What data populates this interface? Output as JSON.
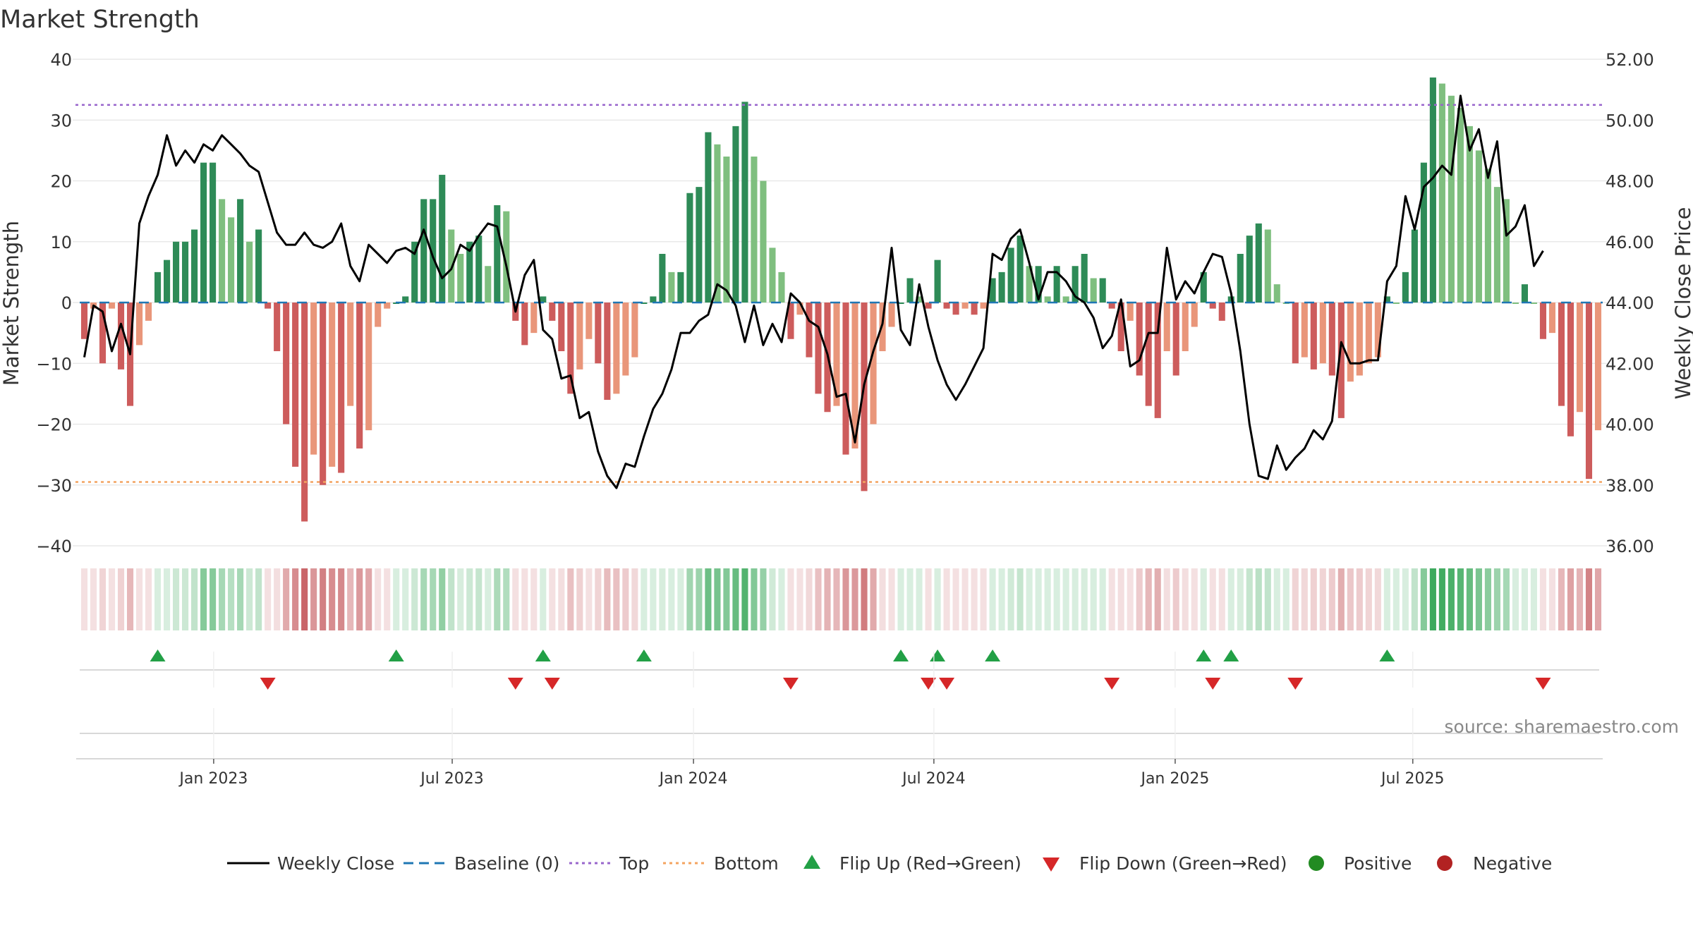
{
  "chart_data": {
    "type": "bar",
    "title": "Market Strength",
    "ylabel_left": "Market Strength",
    "ylabel_right": "Weekly Close Price",
    "ylim_left": [
      -40,
      40
    ],
    "ylim_right": [
      36,
      52
    ],
    "yticks_left": [
      "40",
      "30",
      "20",
      "10",
      "0",
      "−10",
      "−20",
      "−30",
      "−40"
    ],
    "yticks_left_values": [
      40,
      30,
      20,
      10,
      0,
      -10,
      -20,
      -30,
      -40
    ],
    "yticks_right": [
      "52.00",
      "50.00",
      "48.00",
      "46.00",
      "44.00",
      "42.00",
      "40.00",
      "38.00",
      "36.00"
    ],
    "yticks_right_values": [
      52,
      50,
      48,
      46,
      44,
      42,
      40,
      38,
      36
    ],
    "top_line": 32.5,
    "bottom_line": -29.5,
    "x_dates": [
      "Jan 2023",
      "Jul 2023",
      "Jan 2024",
      "Jul 2024",
      "Jan 2025",
      "Jul 2025"
    ],
    "x_date_weeks": [
      14.6,
      40.6,
      66.9,
      93.1,
      119.4,
      145.3
    ],
    "strength": [
      -6,
      -1,
      -10,
      -1,
      -11,
      -17,
      -7,
      -3,
      5,
      7,
      10,
      10,
      12,
      23,
      23,
      17,
      14,
      17,
      10,
      12,
      -1,
      -8,
      -20,
      -27,
      -36,
      -25,
      -30,
      -27,
      -28,
      -17,
      -24,
      -21,
      -4,
      -1,
      0,
      1,
      10,
      17,
      17,
      21,
      12,
      8,
      10,
      11,
      6,
      16,
      15,
      -3,
      -7,
      -5,
      1,
      -3,
      -8,
      -15,
      -11,
      -6,
      -10,
      -16,
      -15,
      -12,
      -9,
      0,
      1,
      8,
      5,
      5,
      18,
      19,
      28,
      26,
      24,
      29,
      33,
      24,
      20,
      9,
      5,
      -6,
      -2,
      -9,
      -15,
      -18,
      -17,
      -25,
      -24,
      -31,
      -20,
      -8,
      -4,
      0,
      4,
      1,
      -1,
      7,
      -1,
      -2,
      -1,
      -2,
      -1,
      4,
      5,
      9,
      11,
      6,
      6,
      1,
      6,
      1,
      6,
      8,
      4,
      4,
      -1,
      -8,
      -3,
      -12,
      -17,
      -19,
      -8,
      -12,
      -8,
      -4,
      5,
      -1,
      -3,
      1,
      8,
      11,
      13,
      12,
      3,
      0,
      -10,
      -9,
      -11,
      -10,
      -12,
      -19,
      -13,
      -12,
      -10,
      -9,
      1,
      0,
      5,
      12,
      23,
      37,
      36,
      34,
      32,
      29,
      25,
      22,
      19,
      17,
      0,
      3,
      0,
      -6,
      -5,
      -17,
      -22,
      -18,
      -29,
      -21
    ],
    "weekly_close": [
      42.2,
      43.9,
      43.7,
      42.4,
      43.3,
      42.3,
      46.6,
      47.5,
      48.2,
      49.5,
      48.5,
      49.0,
      48.6,
      49.2,
      49.0,
      49.5,
      49.2,
      48.9,
      48.5,
      48.3,
      47.3,
      46.3,
      45.9,
      45.9,
      46.3,
      45.9,
      45.8,
      46.0,
      46.6,
      45.2,
      44.7,
      45.9,
      45.6,
      45.3,
      45.7,
      45.8,
      45.6,
      46.4,
      45.5,
      44.8,
      45.1,
      45.9,
      45.7,
      46.2,
      46.6,
      46.5,
      45.2,
      43.7,
      44.9,
      45.4,
      43.1,
      42.8,
      41.5,
      41.6,
      40.2,
      40.4,
      39.1,
      38.3,
      37.9,
      38.7,
      38.6,
      39.6,
      40.5,
      41.0,
      41.8,
      43.0,
      43.0,
      43.4,
      43.6,
      44.6,
      44.4,
      43.9,
      42.7,
      43.9,
      42.6,
      43.3,
      42.7,
      44.3,
      44.0,
      43.4,
      43.2,
      42.3,
      40.9,
      41.0,
      39.4,
      41.3,
      42.4,
      43.3,
      45.8,
      43.1,
      42.6,
      44.6,
      43.2,
      42.1,
      41.3,
      40.8,
      41.3,
      41.9,
      42.5,
      45.6,
      45.4,
      46.1,
      46.4,
      45.3,
      44.1,
      45.0,
      45.0,
      44.7,
      44.2,
      44.0,
      43.5,
      42.5,
      42.9,
      44.1,
      41.9,
      42.1,
      43.0,
      43.0,
      45.8,
      44.1,
      44.7,
      44.3,
      45.0,
      45.6,
      45.5,
      44.3,
      42.4,
      40.0,
      38.3,
      38.2,
      39.3,
      38.5,
      38.9,
      39.2,
      39.8,
      39.5,
      40.1,
      42.7,
      42.0,
      42.0,
      42.1,
      42.1,
      44.7,
      45.2,
      47.5,
      46.4,
      47.8,
      48.1,
      48.5,
      48.2,
      50.8,
      49.0,
      49.7,
      48.1,
      49.3,
      46.2,
      46.5,
      47.2,
      45.2,
      45.7
    ]
  },
  "legend": {
    "weekly_close": "Weekly Close",
    "baseline": "Baseline (0)",
    "top": "Top",
    "bottom": "Bottom",
    "flip_up": "Flip Up (Red→Green)",
    "flip_down": "Flip Down (Green→Red)",
    "positive": "Positive",
    "negative": "Negative"
  },
  "source": "source: sharemaestro.com",
  "colors": {
    "pos_strong": "#2e8b57",
    "pos_weak": "#7fbf7f",
    "neg_strong": "#cd5c5c",
    "neg_weak": "#e9967a",
    "price_line": "#000000",
    "baseline": "#1f77b4",
    "top_line": "#9966cc",
    "bottom_line": "#f4a460",
    "flip_up": "#22a046",
    "flip_down": "#d62728",
    "positive_dot": "#228b22",
    "negative_dot": "#b22222"
  }
}
